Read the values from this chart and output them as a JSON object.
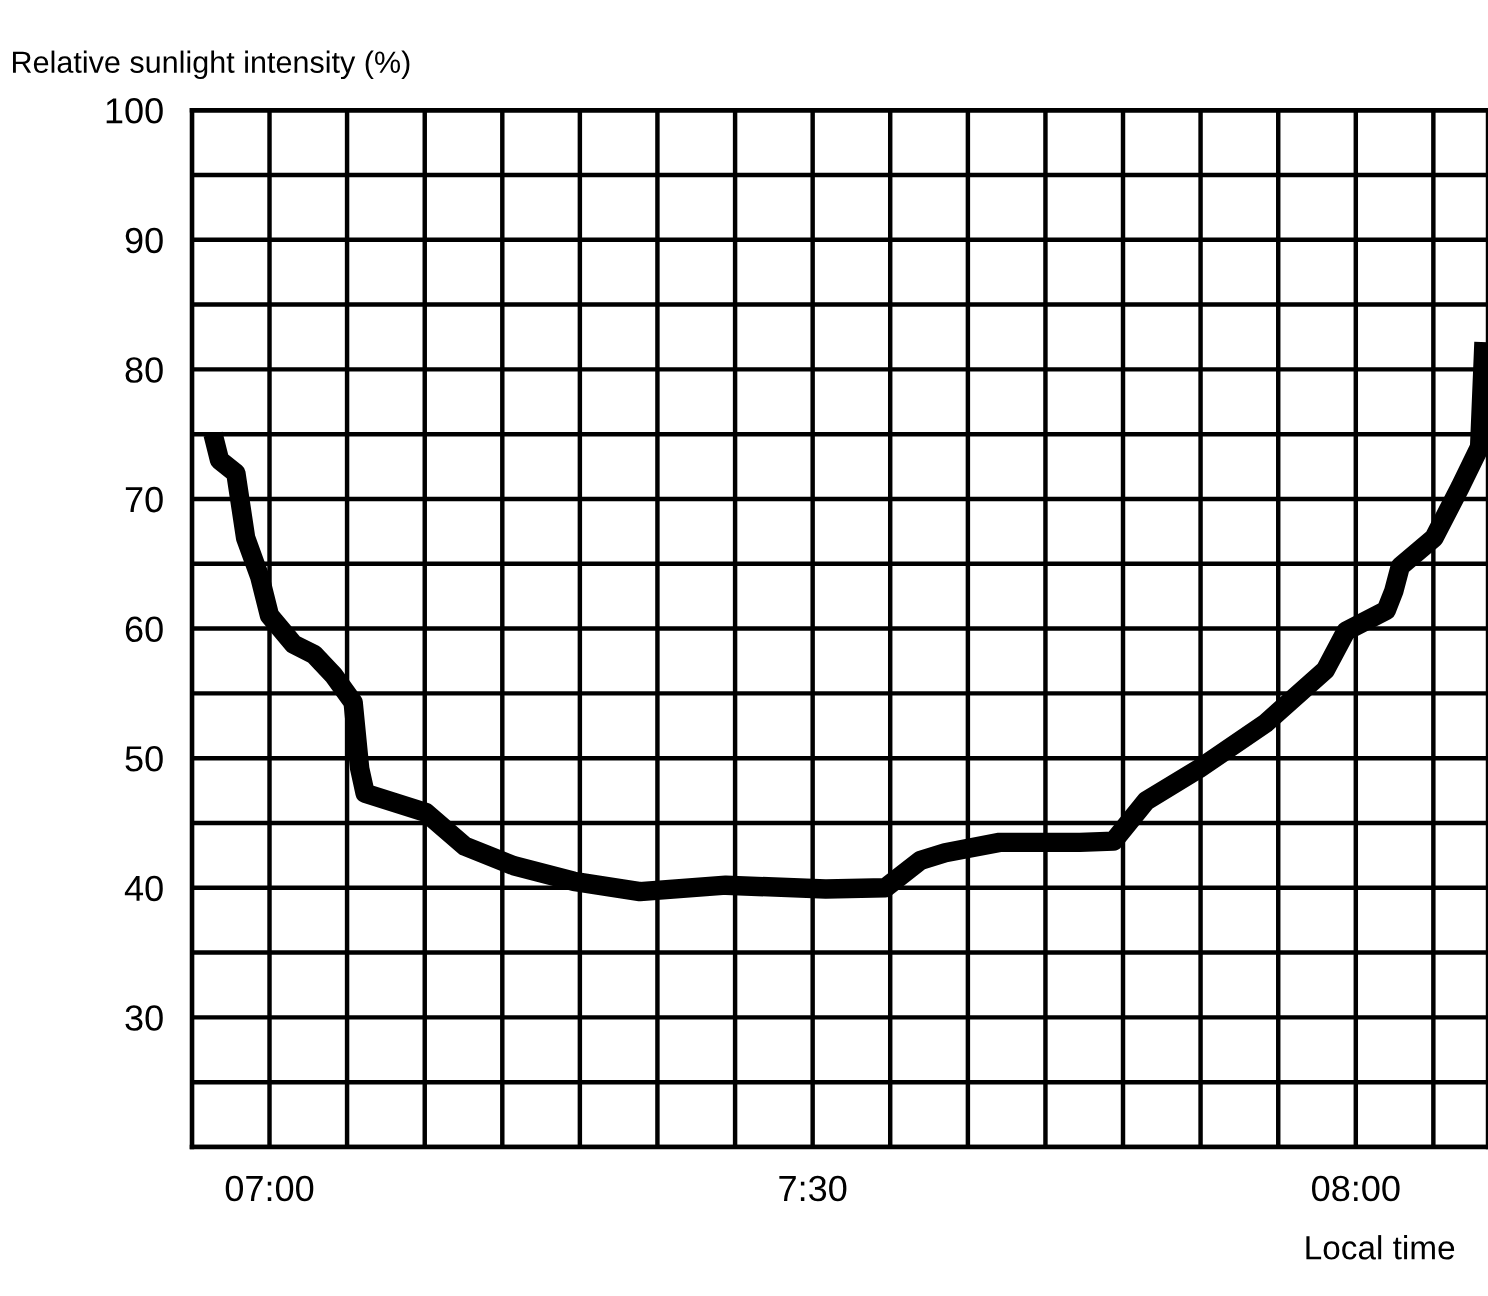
{
  "chart_data": {
    "type": "line",
    "ylabel": "Relative sunlight intensity (%)",
    "xlabel": "Local time",
    "color": "#000000",
    "line_style": "solid",
    "marker": "none",
    "grid": true,
    "x": [
      6.948,
      6.954,
      6.969,
      6.978,
      6.991,
      7.0,
      7.022,
      7.041,
      7.059,
      7.077,
      7.083,
      7.088,
      7.144,
      7.18,
      7.225,
      7.28,
      7.341,
      7.42,
      7.512,
      7.567,
      7.599,
      7.622,
      7.672,
      7.746,
      7.777,
      7.807,
      7.856,
      7.917,
      7.972,
      7.991,
      8.028,
      8.035,
      8.041,
      8.072,
      8.096,
      8.114,
      8.118
    ],
    "values": [
      75,
      73,
      72,
      67,
      64,
      61,
      58.8,
      58,
      56.4,
      54.3,
      49.2,
      47.3,
      45.8,
      43.2,
      41.7,
      40.5,
      39.7,
      40.2,
      39.9,
      40,
      42.1,
      42.7,
      43.5,
      43.5,
      43.6,
      46.7,
      49.2,
      52.7,
      56.8,
      59.8,
      61.4,
      62.9,
      64.8,
      67,
      70.9,
      74,
      82.1
    ],
    "xlim": [
      6.9286,
      8.1217
    ],
    "ylim": [
      20,
      100
    ],
    "xticks": [
      {
        "value": 6.9286,
        "label": null
      },
      {
        "value": 7.0,
        "label": "07:00"
      },
      {
        "value": 7.0714,
        "label": null
      },
      {
        "value": 7.1429,
        "label": null
      },
      {
        "value": 7.2143,
        "label": null
      },
      {
        "value": 7.2857,
        "label": null
      },
      {
        "value": 7.3571,
        "label": null
      },
      {
        "value": 7.4286,
        "label": null
      },
      {
        "value": 7.5,
        "label": "7:30"
      },
      {
        "value": 7.5714,
        "label": null
      },
      {
        "value": 7.6429,
        "label": null
      },
      {
        "value": 7.7143,
        "label": null
      },
      {
        "value": 7.7857,
        "label": null
      },
      {
        "value": 7.8571,
        "label": null
      },
      {
        "value": 7.9286,
        "label": null
      },
      {
        "value": 8.0,
        "label": "08:00"
      },
      {
        "value": 8.0714,
        "label": null
      }
    ],
    "yticks": [
      {
        "value": 20,
        "label": null
      },
      {
        "value": 25,
        "label": null
      },
      30,
      {
        "value": 35,
        "label": null
      },
      40,
      {
        "value": 45,
        "label": null
      },
      50,
      {
        "value": 55,
        "label": null
      },
      60,
      {
        "value": 65,
        "label": null
      },
      70,
      {
        "value": 75,
        "label": null
      },
      80,
      {
        "value": 85,
        "label": null
      },
      90,
      {
        "value": 95,
        "label": null
      },
      100
    ]
  }
}
